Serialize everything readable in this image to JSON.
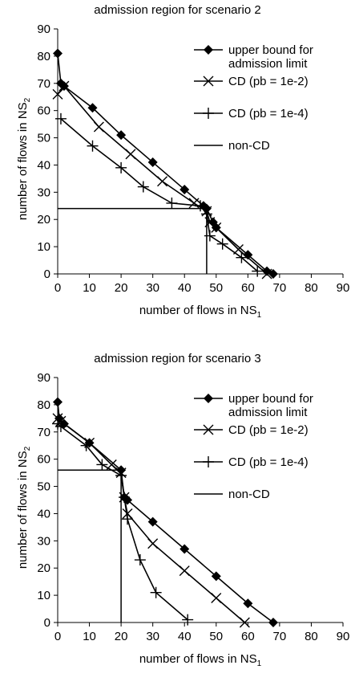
{
  "chart_data": [
    {
      "type": "line",
      "title": "admission region for scenario 2",
      "xlabel": "number of flows in NS",
      "xlabel_sub": "1",
      "ylabel": "number of flows in NS",
      "ylabel_sub": "2",
      "xlim": [
        0,
        90
      ],
      "ylim": [
        0,
        90
      ],
      "xticks": [
        0,
        10,
        20,
        30,
        40,
        50,
        60,
        70,
        80,
        90
      ],
      "yticks": [
        0,
        10,
        20,
        30,
        40,
        50,
        60,
        70,
        80,
        90
      ],
      "grid": false,
      "legend_position": "top-right",
      "series": [
        {
          "name": "upper bound for admission limit",
          "marker": "diamond",
          "points": [
            [
              0,
              81
            ],
            [
              1,
              70
            ],
            [
              2,
              69
            ],
            [
              11,
              61
            ],
            [
              20,
              51
            ],
            [
              30,
              41
            ],
            [
              40,
              31
            ],
            [
              46,
              25
            ],
            [
              47,
              24
            ],
            [
              49,
              19
            ],
            [
              50,
              17
            ],
            [
              60,
              7
            ],
            [
              66,
              1
            ],
            [
              68,
              0
            ]
          ]
        },
        {
          "name": "CD (pb = 1e-2)",
          "marker": "x",
          "points": [
            [
              0,
              66
            ],
            [
              2,
              69
            ],
            [
              13,
              54
            ],
            [
              23,
              44
            ],
            [
              33,
              34
            ],
            [
              43,
              26
            ],
            [
              47,
              23
            ],
            [
              48,
              19
            ],
            [
              50,
              17
            ],
            [
              57,
              9
            ],
            [
              66,
              0
            ]
          ]
        },
        {
          "name": "CD (pb = 1e-4)",
          "marker": "plus",
          "points": [
            [
              1,
              57
            ],
            [
              11,
              47
            ],
            [
              20,
              39
            ],
            [
              27,
              32
            ],
            [
              36,
              26
            ],
            [
              45,
              25
            ],
            [
              47,
              22
            ],
            [
              48,
              14
            ],
            [
              52,
              11
            ],
            [
              58,
              6
            ],
            [
              63,
              1
            ]
          ]
        },
        {
          "name": "non-CD",
          "marker": "none",
          "points": [
            [
              0,
              24
            ],
            [
              47,
              24
            ],
            [
              47,
              0
            ]
          ]
        }
      ]
    },
    {
      "type": "line",
      "title": "admission region for scenario 3",
      "xlabel": "number of flows in NS",
      "xlabel_sub": "1",
      "ylabel": "number of flows in NS",
      "ylabel_sub": "2",
      "xlim": [
        0,
        90
      ],
      "ylim": [
        0,
        90
      ],
      "xticks": [
        0,
        10,
        20,
        30,
        40,
        50,
        60,
        70,
        80,
        90
      ],
      "yticks": [
        0,
        10,
        20,
        30,
        40,
        50,
        60,
        70,
        80,
        90
      ],
      "grid": false,
      "legend_position": "top-right",
      "series": [
        {
          "name": "upper bound for admission limit",
          "marker": "diamond",
          "points": [
            [
              0,
              81
            ],
            [
              0.5,
              75
            ],
            [
              2,
              73
            ],
            [
              10,
              66
            ],
            [
              20,
              56
            ],
            [
              21,
              46
            ],
            [
              22,
              45
            ],
            [
              30,
              37
            ],
            [
              40,
              27
            ],
            [
              50,
              17
            ],
            [
              60,
              7
            ],
            [
              68,
              0
            ]
          ]
        },
        {
          "name": "CD (pb = 1e-2)",
          "marker": "x",
          "points": [
            [
              0,
              75
            ],
            [
              1,
              74
            ],
            [
              10,
              66
            ],
            [
              17,
              58
            ],
            [
              20,
              55
            ],
            [
              21,
              46
            ],
            [
              22,
              40
            ],
            [
              30,
              29
            ],
            [
              40,
              19
            ],
            [
              50,
              9
            ],
            [
              59,
              0
            ]
          ]
        },
        {
          "name": "CD (pb = 1e-4)",
          "marker": "plus",
          "points": [
            [
              0,
              73
            ],
            [
              1,
              72
            ],
            [
              9,
              65
            ],
            [
              14,
              58
            ],
            [
              20,
              54
            ],
            [
              21,
              46
            ],
            [
              22,
              38
            ],
            [
              26,
              23
            ],
            [
              31,
              11
            ],
            [
              41,
              1
            ]
          ]
        },
        {
          "name": "non-CD",
          "marker": "none",
          "points": [
            [
              0,
              56
            ],
            [
              20,
              56
            ],
            [
              20,
              0
            ]
          ]
        }
      ]
    }
  ]
}
